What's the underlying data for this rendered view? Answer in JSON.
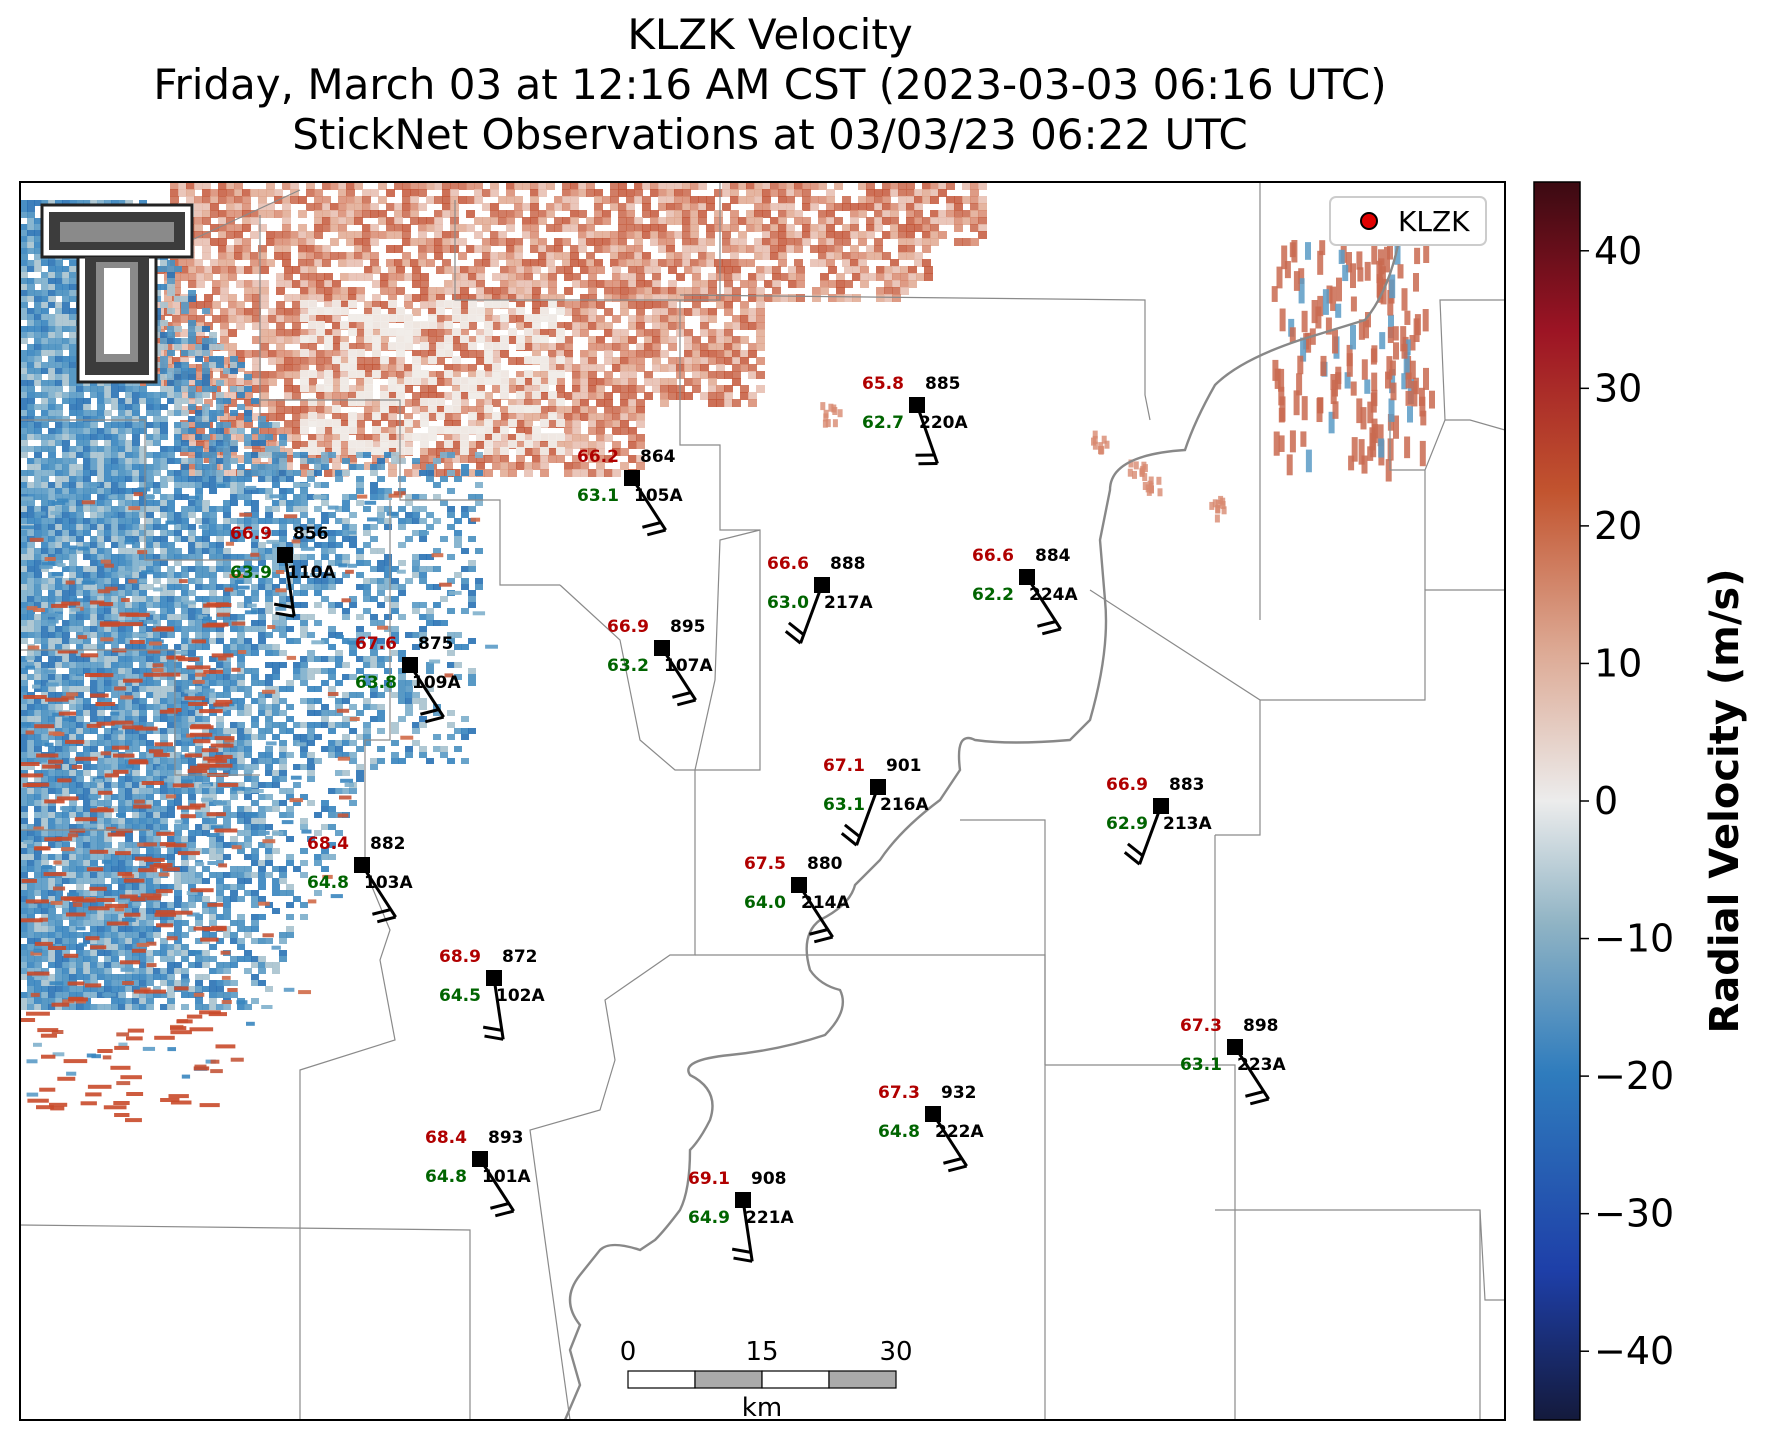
{
  "title": {
    "line1": "KLZK Velocity",
    "line2": "Friday, March 03 at 12:16 AM CST (2023-03-03 06:16 UTC)",
    "line3": "StickNet Observations at 03/03/23 06:22 UTC"
  },
  "legend": {
    "label": "KLZK",
    "marker_color": "#e00000"
  },
  "colorbar": {
    "label": "Radial Velocity (m/s)",
    "range": [
      -45,
      45
    ],
    "ticks": [
      "40",
      "30",
      "20",
      "10",
      "0",
      "−10",
      "−20",
      "−30",
      "−40"
    ],
    "tick_values": [
      40,
      30,
      20,
      10,
      0,
      -10,
      -20,
      -30,
      -40
    ]
  },
  "scale_bar": {
    "labels": [
      "0",
      "15",
      "30"
    ],
    "unit": "km"
  },
  "logo": {
    "name": "Texas Tech Double T"
  },
  "colors": {
    "temperature": "#b00000",
    "dewpoint": "#006400",
    "other": "#000000"
  },
  "stations": [
    {
      "id": "220A",
      "temp": "65.8",
      "dew": "62.7",
      "pressure": "885"
    },
    {
      "id": "105A",
      "temp": "66.2",
      "dew": "63.1",
      "pressure": "864"
    },
    {
      "id": "110A",
      "temp": "66.9",
      "dew": "63.9",
      "pressure": "856"
    },
    {
      "id": "217A",
      "temp": "66.6",
      "dew": "63.0",
      "pressure": "888"
    },
    {
      "id": "224A",
      "temp": "66.6",
      "dew": "62.2",
      "pressure": "884"
    },
    {
      "id": "107A",
      "temp": "66.9",
      "dew": "63.2",
      "pressure": "895"
    },
    {
      "id": "109A",
      "temp": "67.6",
      "dew": "63.8",
      "pressure": "875"
    },
    {
      "id": "216A",
      "temp": "67.1",
      "dew": "63.1",
      "pressure": "901"
    },
    {
      "id": "213A",
      "temp": "66.9",
      "dew": "62.9",
      "pressure": "883"
    },
    {
      "id": "103A",
      "temp": "68.4",
      "dew": "64.8",
      "pressure": "882"
    },
    {
      "id": "214A",
      "temp": "67.5",
      "dew": "64.0",
      "pressure": "880"
    },
    {
      "id": "102A",
      "temp": "68.9",
      "dew": "64.5",
      "pressure": "872"
    },
    {
      "id": "223A",
      "temp": "67.3",
      "dew": "63.1",
      "pressure": "898"
    },
    {
      "id": "222A",
      "temp": "67.3",
      "dew": "64.8",
      "pressure": "932"
    },
    {
      "id": "101A",
      "temp": "68.4",
      "dew": "64.8",
      "pressure": "893"
    },
    {
      "id": "221A",
      "temp": "69.1",
      "dew": "64.9",
      "pressure": "908"
    }
  ]
}
